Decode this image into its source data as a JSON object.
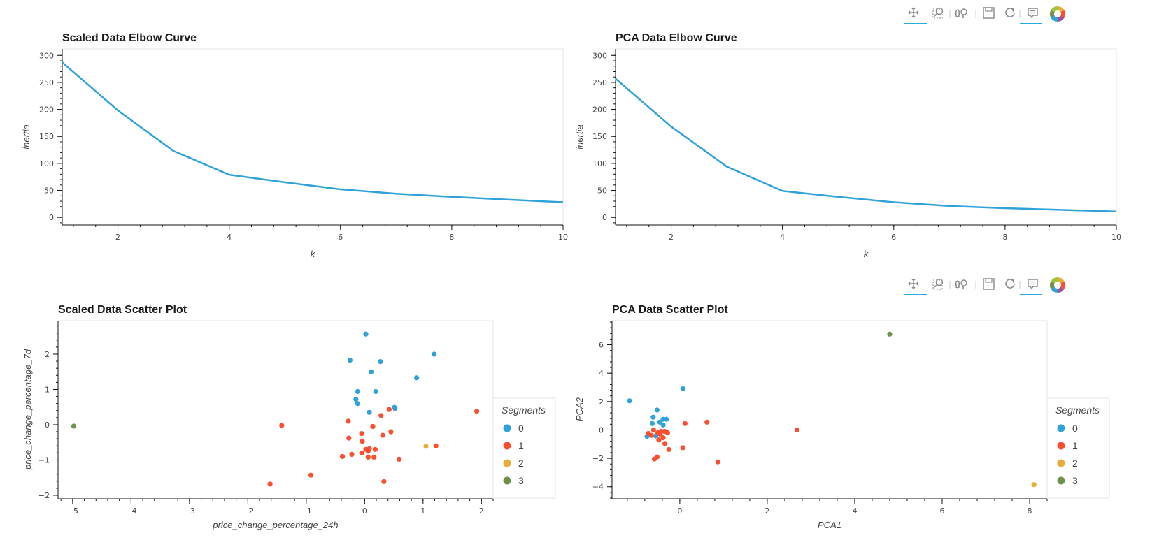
{
  "toolbar": {
    "tools": [
      "pan-icon",
      "box-zoom-icon",
      "wheel-zoom-icon",
      "save-icon",
      "reset-icon",
      "hover-icon",
      "bokeh-logo-icon"
    ],
    "active_underline_color": "#26aae1"
  },
  "colors": {
    "line": "#30a2da",
    "segments": [
      "#30a2da",
      "#fc4f30",
      "#e5ae38",
      "#6d904f"
    ],
    "frame": "#e5e5e5"
  },
  "chart_data": [
    {
      "id": "scaled-elbow",
      "type": "line",
      "title": "Scaled Data Elbow Curve",
      "xlabel": "k",
      "ylabel": "inertia",
      "xlim": [
        1,
        10
      ],
      "ylim": [
        -14,
        312
      ],
      "xticks": [
        2,
        4,
        6,
        8,
        10
      ],
      "yticks": [
        0,
        50,
        100,
        150,
        200,
        250,
        300
      ],
      "x": [
        1,
        2,
        3,
        4,
        5,
        6,
        7,
        8,
        9,
        10
      ],
      "y": [
        287,
        198,
        123,
        79,
        65,
        52,
        44,
        38,
        33,
        28
      ]
    },
    {
      "id": "pca-elbow",
      "type": "line",
      "title": "PCA Data Elbow Curve",
      "xlabel": "k",
      "ylabel": "inertia",
      "xlim": [
        1,
        10
      ],
      "ylim": [
        -14,
        312
      ],
      "xticks": [
        2,
        4,
        6,
        8,
        10
      ],
      "yticks": [
        0,
        50,
        100,
        150,
        200,
        250,
        300
      ],
      "x": [
        1,
        2,
        3,
        4,
        5,
        6,
        7,
        8,
        9,
        10
      ],
      "y": [
        257,
        168,
        94,
        49,
        38,
        28,
        21,
        17,
        14,
        11
      ]
    },
    {
      "id": "scaled-scatter",
      "type": "scatter",
      "title": "Scaled Data Scatter Plot",
      "xlabel": "price_change_percentage_24h",
      "ylabel": "price_change_percentage_7d",
      "xlim": [
        -5.25,
        2.2
      ],
      "ylim": [
        -2.1,
        2.95
      ],
      "xticks": [
        -5,
        -4,
        -3,
        -2,
        -1,
        0,
        1,
        2
      ],
      "yticks": [
        -2,
        -1,
        0,
        1,
        2
      ],
      "legend_title": "Segments",
      "legend_labels": [
        "0",
        "1",
        "2",
        "3"
      ],
      "points": [
        [
          0.02,
          2.57,
          0
        ],
        [
          -0.25,
          1.83,
          0
        ],
        [
          0.27,
          1.79,
          0
        ],
        [
          1.19,
          2.0,
          0
        ],
        [
          0.11,
          1.5,
          0
        ],
        [
          0.89,
          1.33,
          0
        ],
        [
          -0.12,
          0.94,
          0
        ],
        [
          0.19,
          0.94,
          0
        ],
        [
          -0.15,
          0.72,
          0
        ],
        [
          -0.12,
          0.6,
          0
        ],
        [
          0.51,
          0.49,
          0
        ],
        [
          0.52,
          0.46,
          0
        ],
        [
          0.08,
          0.35,
          0
        ],
        [
          0.28,
          0.26,
          1
        ],
        [
          0.42,
          0.43,
          1
        ],
        [
          1.92,
          0.38,
          1
        ],
        [
          -0.28,
          0.1,
          1
        ],
        [
          -1.42,
          -0.02,
          1
        ],
        [
          0.14,
          -0.05,
          1
        ],
        [
          -0.05,
          -0.25,
          1
        ],
        [
          0.45,
          -0.2,
          1
        ],
        [
          -0.27,
          -0.38,
          1
        ],
        [
          0.31,
          -0.3,
          1
        ],
        [
          -0.04,
          -0.47,
          1
        ],
        [
          1.22,
          -0.6,
          1
        ],
        [
          0.02,
          -0.7,
          1
        ],
        [
          0.08,
          -0.68,
          1
        ],
        [
          0.18,
          -0.7,
          1
        ],
        [
          0.06,
          -0.75,
          1
        ],
        [
          -0.05,
          -0.8,
          1
        ],
        [
          -0.22,
          -0.84,
          1
        ],
        [
          -0.38,
          -0.9,
          1
        ],
        [
          0.06,
          -0.92,
          1
        ],
        [
          0.16,
          -0.92,
          1
        ],
        [
          0.59,
          -0.98,
          1
        ],
        [
          -0.92,
          -1.43,
          1
        ],
        [
          0.33,
          -1.61,
          1
        ],
        [
          -1.62,
          -1.68,
          1
        ],
        [
          1.05,
          -0.61,
          2
        ],
        [
          -4.98,
          -0.04,
          3
        ]
      ]
    },
    {
      "id": "pca-scatter",
      "type": "scatter",
      "title": "PCA Data Scatter Plot",
      "xlabel": "PCA1",
      "ylabel": "PCA2",
      "xlim": [
        -1.55,
        8.4
      ],
      "ylim": [
        -4.85,
        7.7
      ],
      "xticks": [
        0,
        2,
        4,
        6,
        8
      ],
      "yticks": [
        -4,
        -2,
        0,
        2,
        4,
        6
      ],
      "legend_title": "Segments",
      "legend_labels": [
        "0",
        "1",
        "2",
        "3"
      ],
      "points": [
        [
          -1.15,
          2.05,
          0
        ],
        [
          0.07,
          2.9,
          0
        ],
        [
          -0.52,
          1.4,
          0
        ],
        [
          -0.61,
          0.9,
          0
        ],
        [
          -0.38,
          0.75,
          0
        ],
        [
          -0.31,
          0.75,
          0
        ],
        [
          -0.46,
          0.55,
          0
        ],
        [
          -0.63,
          0.45,
          0
        ],
        [
          -0.38,
          0.35,
          0
        ],
        [
          -0.75,
          -0.45,
          0
        ],
        [
          -0.55,
          -0.42,
          0
        ],
        [
          0.62,
          0.55,
          1
        ],
        [
          0.12,
          0.45,
          1
        ],
        [
          2.68,
          0.0,
          1
        ],
        [
          -0.6,
          0.0,
          1
        ],
        [
          -0.5,
          -0.2,
          1
        ],
        [
          -0.42,
          -0.1,
          1
        ],
        [
          -0.35,
          -0.1,
          1
        ],
        [
          -0.28,
          -0.2,
          1
        ],
        [
          -0.72,
          -0.25,
          1
        ],
        [
          -0.45,
          -0.3,
          1
        ],
        [
          -0.65,
          -0.38,
          1
        ],
        [
          -0.48,
          -0.7,
          1
        ],
        [
          -0.38,
          -0.55,
          1
        ],
        [
          -0.34,
          -0.95,
          1
        ],
        [
          -0.25,
          -1.38,
          1
        ],
        [
          0.07,
          -1.25,
          1
        ],
        [
          -0.58,
          -2.05,
          1
        ],
        [
          -0.52,
          -1.9,
          1
        ],
        [
          0.87,
          -2.25,
          1
        ],
        [
          8.1,
          -3.85,
          2
        ],
        [
          4.8,
          6.75,
          3
        ]
      ]
    }
  ]
}
